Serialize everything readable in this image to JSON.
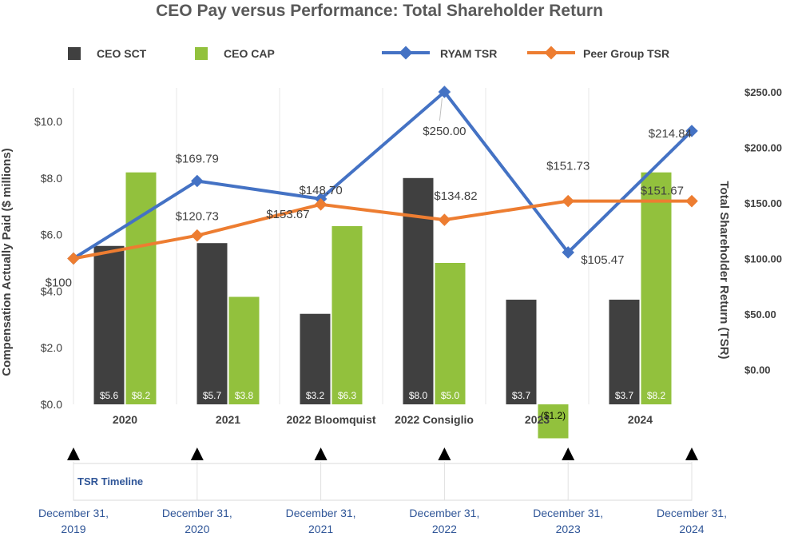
{
  "chart_data": {
    "type": "bar+line",
    "title": "CEO Pay versus Performance: Total Shareholder Return",
    "categories": [
      "2020",
      "2021",
      "2022 Bloomquist",
      "2022 Consiglio",
      "2023",
      "2024"
    ],
    "bar_series": [
      {
        "name": "CEO SCT",
        "color": "#404040",
        "values": [
          5.6,
          5.7,
          3.2,
          8.0,
          3.7,
          3.7
        ],
        "labels": [
          "$5.6",
          "$5.7",
          "$3.2",
          "$8.0",
          "$3.7",
          "$3.7"
        ]
      },
      {
        "name": "CEO CAP",
        "color": "#92c13d",
        "values": [
          8.2,
          3.8,
          6.3,
          5.0,
          -1.2,
          8.2
        ],
        "labels": [
          "$8.2",
          "$3.8",
          "$6.3",
          "$5.0",
          "($1.2)",
          "$8.2"
        ]
      }
    ],
    "line_series": [
      {
        "name": "RYAM TSR",
        "color": "#4472c4",
        "values": [
          100,
          169.79,
          153.67,
          250.0,
          105.47,
          214.84
        ],
        "labels": [
          "$100",
          "$169.79",
          "$153.67",
          "$250.00",
          "$105.47",
          "$214.84"
        ]
      },
      {
        "name": "Peer Group TSR",
        "color": "#ed7d31",
        "values": [
          100,
          120.73,
          148.7,
          134.82,
          151.73,
          151.67
        ],
        "labels": [
          "",
          "$120.73",
          "$148.70",
          "$134.82",
          "$151.73",
          "$151.67"
        ]
      }
    ],
    "y_left": {
      "label": "Compensation Actually Paid ($ millions)",
      "ylim": [
        -1.2,
        10.0
      ],
      "ticks": [
        0,
        2,
        4,
        6,
        8,
        10
      ],
      "tick_labels": [
        "$0.0",
        "$2.0",
        "$4.0",
        "$6.0",
        "$8.0",
        "$10.0"
      ]
    },
    "y_right": {
      "label": "Total Shareholder Return (TSR)",
      "ylim": [
        0,
        250
      ],
      "ticks": [
        0,
        50,
        100,
        150,
        200,
        250
      ],
      "tick_labels": [
        "$0.00",
        "$50.00",
        "$100.00",
        "$150.00",
        "$200.00",
        "$250.00"
      ]
    },
    "legend_position": "top",
    "grid": "vertical category lines",
    "timeline": {
      "title": "TSR Timeline",
      "dates": [
        [
          "December 31,",
          "2019"
        ],
        [
          "December 31,",
          "2020"
        ],
        [
          "December 31,",
          "2021"
        ],
        [
          "December 31,",
          "2022"
        ],
        [
          "December 31,",
          "2023"
        ],
        [
          "December 31,",
          "2024"
        ]
      ]
    }
  }
}
